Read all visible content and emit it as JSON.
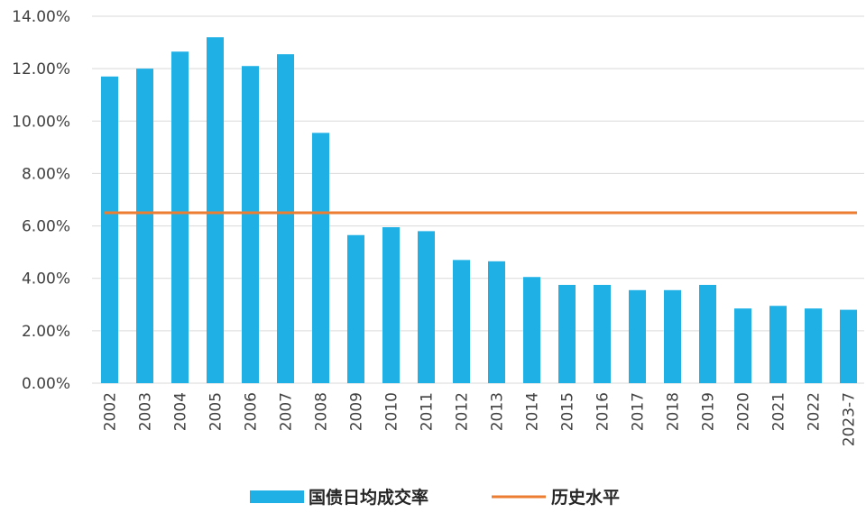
{
  "chart_data": {
    "type": "bar",
    "title": "",
    "xlabel": "",
    "ylabel": "",
    "categories": [
      "2002",
      "2003",
      "2004",
      "2005",
      "2006",
      "2007",
      "2008",
      "2009",
      "2010",
      "2011",
      "2012",
      "2013",
      "2014",
      "2015",
      "2016",
      "2017",
      "2018",
      "2019",
      "2020",
      "2021",
      "2022",
      "2023-7"
    ],
    "y_tick_labels": [
      "0.00%",
      "2.00%",
      "4.00%",
      "6.00%",
      "8.00%",
      "10.00%",
      "12.00%",
      "14.00%"
    ],
    "ylim": [
      0,
      14
    ],
    "grid": true,
    "legend_position": "bottom",
    "series": [
      {
        "name": "国债日均成交率",
        "type": "bar",
        "color": "#1fb1e6",
        "values": [
          11.7,
          12.0,
          12.65,
          13.2,
          12.1,
          12.55,
          9.55,
          5.65,
          5.95,
          5.8,
          4.7,
          4.65,
          4.05,
          3.75,
          3.75,
          3.55,
          3.55,
          3.75,
          2.85,
          2.95,
          2.85,
          2.8
        ]
      },
      {
        "name": "历史水平",
        "type": "line",
        "color": "#ed7d31",
        "values": [
          6.5,
          6.5,
          6.5,
          6.5,
          6.5,
          6.5,
          6.5,
          6.5,
          6.5,
          6.5,
          6.5,
          6.5,
          6.5,
          6.5,
          6.5,
          6.5,
          6.5,
          6.5,
          6.5,
          6.5,
          6.5,
          6.5
        ]
      }
    ]
  }
}
